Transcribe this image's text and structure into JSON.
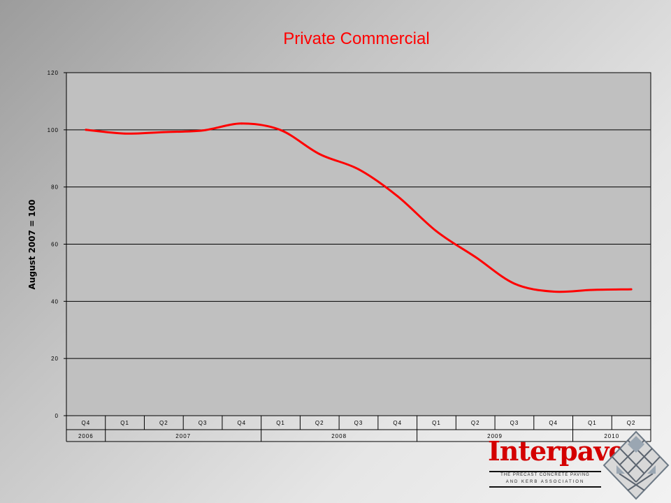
{
  "slide": {
    "title": "Private Commercial"
  },
  "chart_data": {
    "type": "line",
    "title": "Private Commercial",
    "ylabel": "August 2007 = 100",
    "xlabel": "",
    "ylim": [
      0,
      120
    ],
    "yticks": [
      0,
      20,
      40,
      60,
      80,
      100,
      120
    ],
    "ytick_labels": [
      "0",
      "20",
      "40",
      "60",
      "80",
      "100",
      "120"
    ],
    "grid": true,
    "legend": "none",
    "categories": [
      "Q4",
      "Q1",
      "Q2",
      "Q3",
      "Q4",
      "Q1",
      "Q2",
      "Q3",
      "Q4",
      "Q1",
      "Q2",
      "Q3",
      "Q4",
      "Q1",
      "Q2"
    ],
    "years": [
      {
        "label": "2006",
        "span": 1
      },
      {
        "label": "2007",
        "span": 4
      },
      {
        "label": "2008",
        "span": 4
      },
      {
        "label": "2009",
        "span": 4
      },
      {
        "label": "2010",
        "span": 2
      }
    ],
    "series": [
      {
        "color": "#ff0000",
        "values": [
          100,
          98.7,
          99.2,
          99.8,
          102.2,
          99.9,
          91.5,
          86.2,
          76.8,
          64.5,
          55.5,
          46.2,
          43.4,
          44.0,
          44.2
        ]
      }
    ]
  },
  "logo": {
    "word": "Interpave",
    "tagline1": "THE PRECAST CONCRETE PAVING",
    "tagline2": "AND KERB ASSOCIATION"
  },
  "colors": {
    "line": "#ff0000",
    "plot_bg": "#c0c0c0",
    "logo_red": "#d40000"
  }
}
